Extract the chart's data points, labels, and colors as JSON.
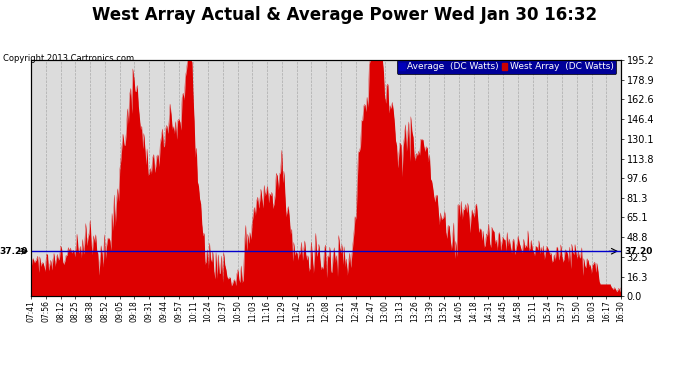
{
  "title": "West Array Actual & Average Power Wed Jan 30 16:32",
  "copyright": "Copyright 2013 Cartronics.com",
  "legend_labels": [
    "Average  (DC Watts)",
    "West Array  (DC Watts)"
  ],
  "legend_colors": [
    "#0000bb",
    "#cc0000"
  ],
  "average_value": 37.2,
  "average_label": "37.20",
  "yticks": [
    0.0,
    16.3,
    32.5,
    48.8,
    65.1,
    81.3,
    97.6,
    113.8,
    130.1,
    146.4,
    162.6,
    178.9,
    195.2
  ],
  "ymax": 195.2,
  "ymin": 0.0,
  "background_color": "#ffffff",
  "plot_bg_color": "#dcdcdc",
  "grid_color": "#aaaaaa",
  "bar_color": "#dd0000",
  "avg_line_color": "#0000cc",
  "title_fontsize": 12,
  "xtick_labels": [
    "07:41",
    "07:56",
    "08:12",
    "08:25",
    "08:38",
    "08:52",
    "09:05",
    "09:18",
    "09:31",
    "09:44",
    "09:57",
    "10:11",
    "10:24",
    "10:37",
    "10:50",
    "11:03",
    "11:16",
    "11:29",
    "11:42",
    "11:55",
    "12:08",
    "12:21",
    "12:34",
    "12:47",
    "13:00",
    "13:13",
    "13:26",
    "13:39",
    "13:52",
    "14:05",
    "14:18",
    "14:31",
    "14:45",
    "14:58",
    "15:11",
    "15:24",
    "15:37",
    "15:50",
    "16:03",
    "16:17",
    "16:30"
  ]
}
